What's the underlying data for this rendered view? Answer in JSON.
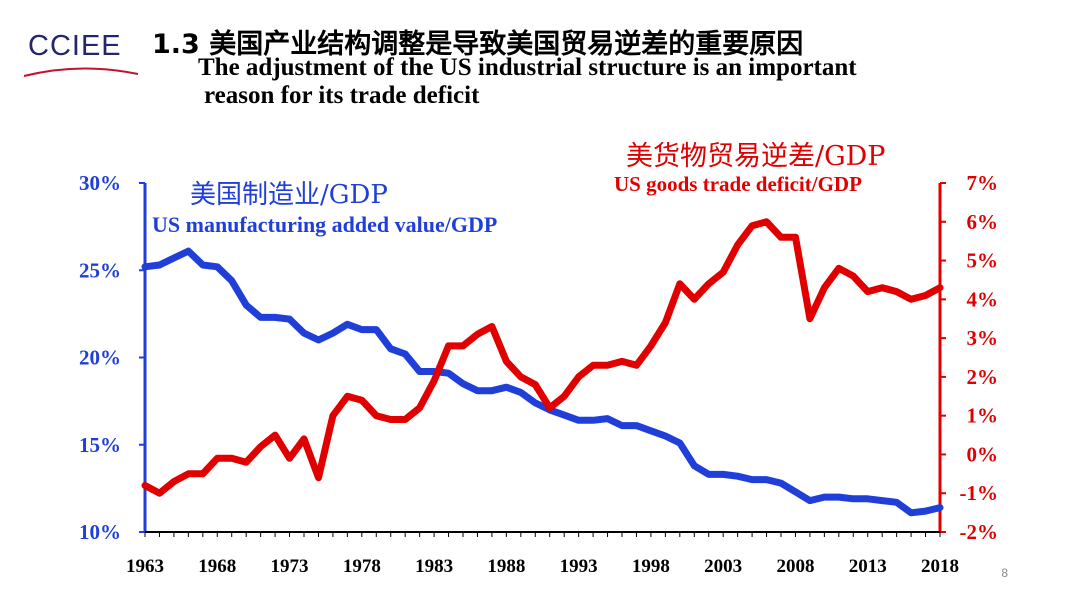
{
  "header": {
    "logo_text": "CCIEE",
    "title_cn": "1.3 美国产业结构调整是导致美国贸易逆差的重要原因",
    "title_en_line1": "The adjustment of the US industrial structure is an important",
    "title_en_line2": "reason for its trade deficit"
  },
  "page_number": "8",
  "chart_data": {
    "type": "line",
    "x": [
      1963,
      1964,
      1965,
      1966,
      1967,
      1968,
      1969,
      1970,
      1971,
      1972,
      1973,
      1974,
      1975,
      1976,
      1977,
      1978,
      1979,
      1980,
      1981,
      1982,
      1983,
      1984,
      1985,
      1986,
      1987,
      1988,
      1989,
      1990,
      1991,
      1992,
      1993,
      1994,
      1995,
      1996,
      1997,
      1998,
      1999,
      2000,
      2001,
      2002,
      2003,
      2004,
      2005,
      2006,
      2007,
      2008,
      2009,
      2010,
      2011,
      2012,
      2013,
      2014,
      2015,
      2016,
      2017,
      2018
    ],
    "x_ticks": [
      "1963",
      "1968",
      "1973",
      "1978",
      "1983",
      "1988",
      "1993",
      "1998",
      "2003",
      "2008",
      "2013",
      "2018"
    ],
    "series": [
      {
        "name": "US manufacturing added value/GDP",
        "name_cn": "美国制造业/GDP",
        "axis": "left",
        "color": "#1f3fd8",
        "values": [
          25.2,
          25.3,
          25.7,
          26.1,
          25.3,
          25.2,
          24.4,
          23.0,
          22.3,
          22.3,
          22.2,
          21.4,
          21.0,
          21.4,
          21.9,
          21.6,
          21.6,
          20.5,
          20.2,
          19.2,
          19.2,
          19.1,
          18.5,
          18.1,
          18.1,
          18.3,
          18.0,
          17.4,
          17.0,
          16.7,
          16.4,
          16.4,
          16.5,
          16.1,
          16.1,
          15.8,
          15.5,
          15.1,
          13.8,
          13.3,
          13.3,
          13.2,
          13.0,
          13.0,
          12.8,
          12.3,
          11.8,
          12.0,
          12.0,
          11.9,
          11.9,
          11.8,
          11.7,
          11.1,
          11.2,
          11.4
        ]
      },
      {
        "name": "US goods trade deficit/GDP",
        "name_cn": "美货物贸易逆差/GDP",
        "axis": "right",
        "color": "#e00000",
        "values": [
          -0.8,
          -1.0,
          -0.7,
          -0.5,
          -0.5,
          -0.1,
          -0.1,
          -0.2,
          0.2,
          0.5,
          -0.1,
          0.4,
          -0.6,
          1.0,
          1.5,
          1.4,
          1.0,
          0.9,
          0.9,
          1.2,
          1.9,
          2.8,
          2.8,
          3.1,
          3.3,
          2.4,
          2.0,
          1.8,
          1.2,
          1.5,
          2.0,
          2.3,
          2.3,
          2.4,
          2.3,
          2.8,
          3.4,
          4.4,
          4.0,
          4.4,
          4.7,
          5.4,
          5.9,
          6.0,
          5.6,
          5.6,
          3.5,
          4.3,
          4.8,
          4.6,
          4.2,
          4.3,
          4.2,
          4.0,
          4.1,
          4.3
        ]
      }
    ],
    "y_left": {
      "ylim": [
        10,
        30
      ],
      "ticks": [
        "10%",
        "15%",
        "20%",
        "25%",
        "30%"
      ],
      "color": "#1f3fd8"
    },
    "y_right": {
      "ylim": [
        -2,
        7
      ],
      "ticks": [
        "-2%",
        "-1%",
        "0%",
        "1%",
        "2%",
        "3%",
        "4%",
        "5%",
        "6%",
        "7%"
      ],
      "color": "#e00000"
    },
    "grid": false
  },
  "colors": {
    "blue": "#1f3fd8",
    "red": "#e00000",
    "logo_navy": "#23266b",
    "logo_red": "#c8102e"
  }
}
